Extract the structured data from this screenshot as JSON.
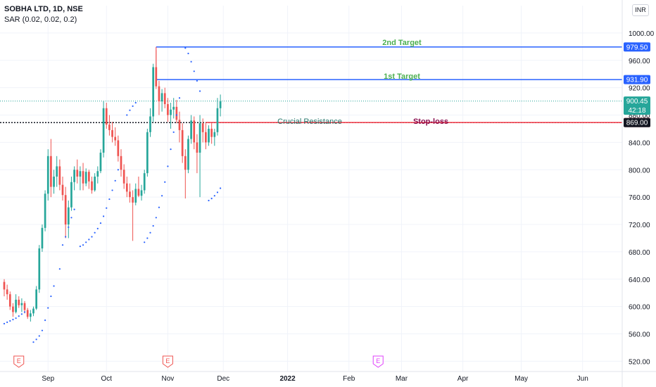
{
  "header": {
    "symbol_line": "SOBHA LTD, 1D, NSE",
    "indicator_line": "SAR (0.02, 0.02, 0.2)"
  },
  "currency_button": "INR",
  "colors": {
    "up": "#26a69a",
    "down": "#ef5350",
    "sar": "#2962ff",
    "target_line": "#2962ff",
    "stop_line": "#f23645",
    "target_text": "#4caf50",
    "resistance_text": "#22756b",
    "stop_text": "#880e4f"
  },
  "chart_data": {
    "type": "candlestick",
    "ylim": [
      505,
      1040
    ],
    "y_ticks": [
      520,
      560,
      600,
      640,
      680,
      720,
      760,
      800,
      840,
      880,
      920,
      960,
      1000
    ],
    "y_tick_labels": [
      "520.00",
      "560.00",
      "600.00",
      "640.00",
      "680.00",
      "720.00",
      "760.00",
      "800.00",
      "840.00",
      "880.00",
      "920.00",
      "960.00",
      "1000.00"
    ],
    "x_ticks": [
      {
        "label": "Sep",
        "index": 15
      },
      {
        "label": "Oct",
        "index": 35
      },
      {
        "label": "Nov",
        "index": 56
      },
      {
        "label": "Dec",
        "index": 75
      },
      {
        "label": "2022",
        "index": 97,
        "bold": true
      },
      {
        "label": "Feb",
        "index": 118
      },
      {
        "label": "Mar",
        "index": 136
      },
      {
        "label": "Apr",
        "index": 157
      },
      {
        "label": "May",
        "index": 177
      },
      {
        "label": "Jun",
        "index": 198
      }
    ],
    "x_count": 213,
    "candles": [
      [
        636,
        640,
        615,
        625
      ],
      [
        625,
        632,
        610,
        618
      ],
      [
        618,
        622,
        595,
        600
      ],
      [
        600,
        605,
        585,
        592
      ],
      [
        592,
        618,
        590,
        610
      ],
      [
        610,
        615,
        598,
        602
      ],
      [
        602,
        612,
        592,
        605
      ],
      [
        605,
        608,
        590,
        595
      ],
      [
        595,
        598,
        582,
        585
      ],
      [
        585,
        595,
        578,
        590
      ],
      [
        590,
        600,
        586,
        597
      ],
      [
        597,
        630,
        595,
        625
      ],
      [
        625,
        690,
        620,
        685
      ],
      [
        685,
        720,
        680,
        715
      ],
      [
        715,
        770,
        710,
        765
      ],
      [
        765,
        830,
        755,
        820
      ],
      [
        820,
        845,
        760,
        775
      ],
      [
        775,
        800,
        765,
        790
      ],
      [
        790,
        820,
        775,
        805
      ],
      [
        805,
        815,
        770,
        778
      ],
      [
        778,
        790,
        755,
        763
      ],
      [
        763,
        775,
        700,
        720
      ],
      [
        720,
        755,
        700,
        745
      ],
      [
        745,
        790,
        740,
        782
      ],
      [
        782,
        805,
        770,
        800
      ],
      [
        800,
        815,
        780,
        790
      ],
      [
        790,
        805,
        770,
        798
      ],
      [
        798,
        810,
        770,
        780
      ],
      [
        780,
        802,
        776,
        797
      ],
      [
        797,
        800,
        772,
        783
      ],
      [
        783,
        790,
        765,
        770
      ],
      [
        770,
        795,
        768,
        790
      ],
      [
        790,
        805,
        780,
        798
      ],
      [
        798,
        830,
        795,
        825
      ],
      [
        825,
        900,
        818,
        890
      ],
      [
        890,
        898,
        860,
        866
      ],
      [
        866,
        880,
        850,
        858
      ],
      [
        858,
        870,
        840,
        848
      ],
      [
        848,
        862,
        835,
        843
      ],
      [
        843,
        850,
        812,
        820
      ],
      [
        820,
        830,
        790,
        800
      ],
      [
        800,
        808,
        772,
        780
      ],
      [
        780,
        790,
        760,
        768
      ],
      [
        768,
        780,
        752,
        760
      ],
      [
        760,
        770,
        696,
        752
      ],
      [
        752,
        780,
        748,
        772
      ],
      [
        772,
        790,
        760,
        762
      ],
      [
        762,
        778,
        755,
        770
      ],
      [
        770,
        800,
        765,
        795
      ],
      [
        795,
        860,
        790,
        855
      ],
      [
        855,
        890,
        848,
        878
      ],
      [
        878,
        955,
        870,
        950
      ],
      [
        950,
        975,
        918,
        922
      ],
      [
        922,
        930,
        880,
        900
      ],
      [
        900,
        918,
        885,
        912
      ],
      [
        912,
        920,
        890,
        896
      ],
      [
        896,
        905,
        870,
        880
      ],
      [
        880,
        898,
        860,
        888
      ],
      [
        888,
        905,
        875,
        892
      ],
      [
        892,
        902,
        868,
        873
      ],
      [
        873,
        885,
        840,
        858
      ],
      [
        858,
        868,
        810,
        820
      ],
      [
        820,
        830,
        758,
        800
      ],
      [
        800,
        850,
        795,
        845
      ],
      [
        845,
        880,
        838,
        872
      ],
      [
        872,
        878,
        830,
        840
      ],
      [
        840,
        852,
        795,
        825
      ],
      [
        825,
        880,
        760,
        868
      ],
      [
        868,
        875,
        840,
        855
      ],
      [
        855,
        868,
        830,
        840
      ],
      [
        840,
        865,
        835,
        860
      ],
      [
        860,
        868,
        838,
        848
      ],
      [
        848,
        860,
        835,
        855
      ],
      [
        855,
        905,
        850,
        890
      ],
      [
        890,
        910,
        878,
        900
      ]
    ],
    "sar": [
      [
        0,
        575
      ],
      [
        1,
        577
      ],
      [
        2,
        579
      ],
      [
        3,
        581
      ],
      [
        4,
        583
      ],
      [
        5,
        586
      ],
      [
        6,
        589
      ],
      [
        7,
        592
      ],
      [
        10,
        548
      ],
      [
        11,
        552
      ],
      [
        12,
        557
      ],
      [
        13,
        565
      ],
      [
        14,
        580
      ],
      [
        15,
        598
      ],
      [
        16,
        615
      ],
      [
        17,
        630
      ],
      [
        19,
        655
      ],
      [
        20,
        690
      ],
      [
        21,
        702
      ],
      [
        22,
        716
      ],
      [
        23,
        730
      ],
      [
        24,
        742
      ],
      [
        26,
        688
      ],
      [
        27,
        690
      ],
      [
        28,
        694
      ],
      [
        29,
        698
      ],
      [
        30,
        702
      ],
      [
        31,
        708
      ],
      [
        32,
        714
      ],
      [
        33,
        722
      ],
      [
        34,
        732
      ],
      [
        35,
        744
      ],
      [
        36,
        757
      ],
      [
        37,
        770
      ],
      [
        38,
        784
      ],
      [
        39,
        800
      ],
      [
        42,
        880
      ],
      [
        43,
        887
      ],
      [
        44,
        893
      ],
      [
        45,
        898
      ],
      [
        48,
        694
      ],
      [
        49,
        700
      ],
      [
        50,
        708
      ],
      [
        51,
        718
      ],
      [
        52,
        730
      ],
      [
        53,
        745
      ],
      [
        54,
        762
      ],
      [
        55,
        782
      ],
      [
        56,
        805
      ],
      [
        57,
        830
      ],
      [
        58,
        855
      ],
      [
        59,
        880
      ],
      [
        60,
        905
      ],
      [
        62,
        978
      ],
      [
        63,
        970
      ],
      [
        64,
        958
      ],
      [
        65,
        944
      ],
      [
        66,
        930
      ],
      [
        67,
        915
      ],
      [
        70,
        755
      ],
      [
        71,
        758
      ],
      [
        72,
        762
      ],
      [
        73,
        767
      ],
      [
        74,
        773
      ]
    ],
    "levels": [
      {
        "value": 979.5,
        "label": "979.50",
        "name": "2nd Target",
        "kind": "target",
        "start": 52
      },
      {
        "value": 931.9,
        "label": "931.90",
        "name": "1st Target",
        "kind": "target",
        "start": 52
      },
      {
        "value": 869.05,
        "label": "869.05",
        "name": "Stop-loss",
        "kind": "stop",
        "start": 69
      }
    ],
    "current_price": {
      "value": 900.45,
      "label": "900.45",
      "countdown": "42:18"
    },
    "cursor_price": {
      "value": 869.0,
      "label": "869.00"
    },
    "annotations": {
      "target2": "2nd Target",
      "target1": "1st Target",
      "resistance": "Crucial Resistance",
      "stoploss": "Stop-loss"
    },
    "events": [
      {
        "index": 5,
        "label": "E",
        "kind": "earnings"
      },
      {
        "index": 56,
        "label": "E",
        "kind": "earnings"
      },
      {
        "index": 128,
        "label": "E",
        "kind": "future"
      }
    ]
  }
}
